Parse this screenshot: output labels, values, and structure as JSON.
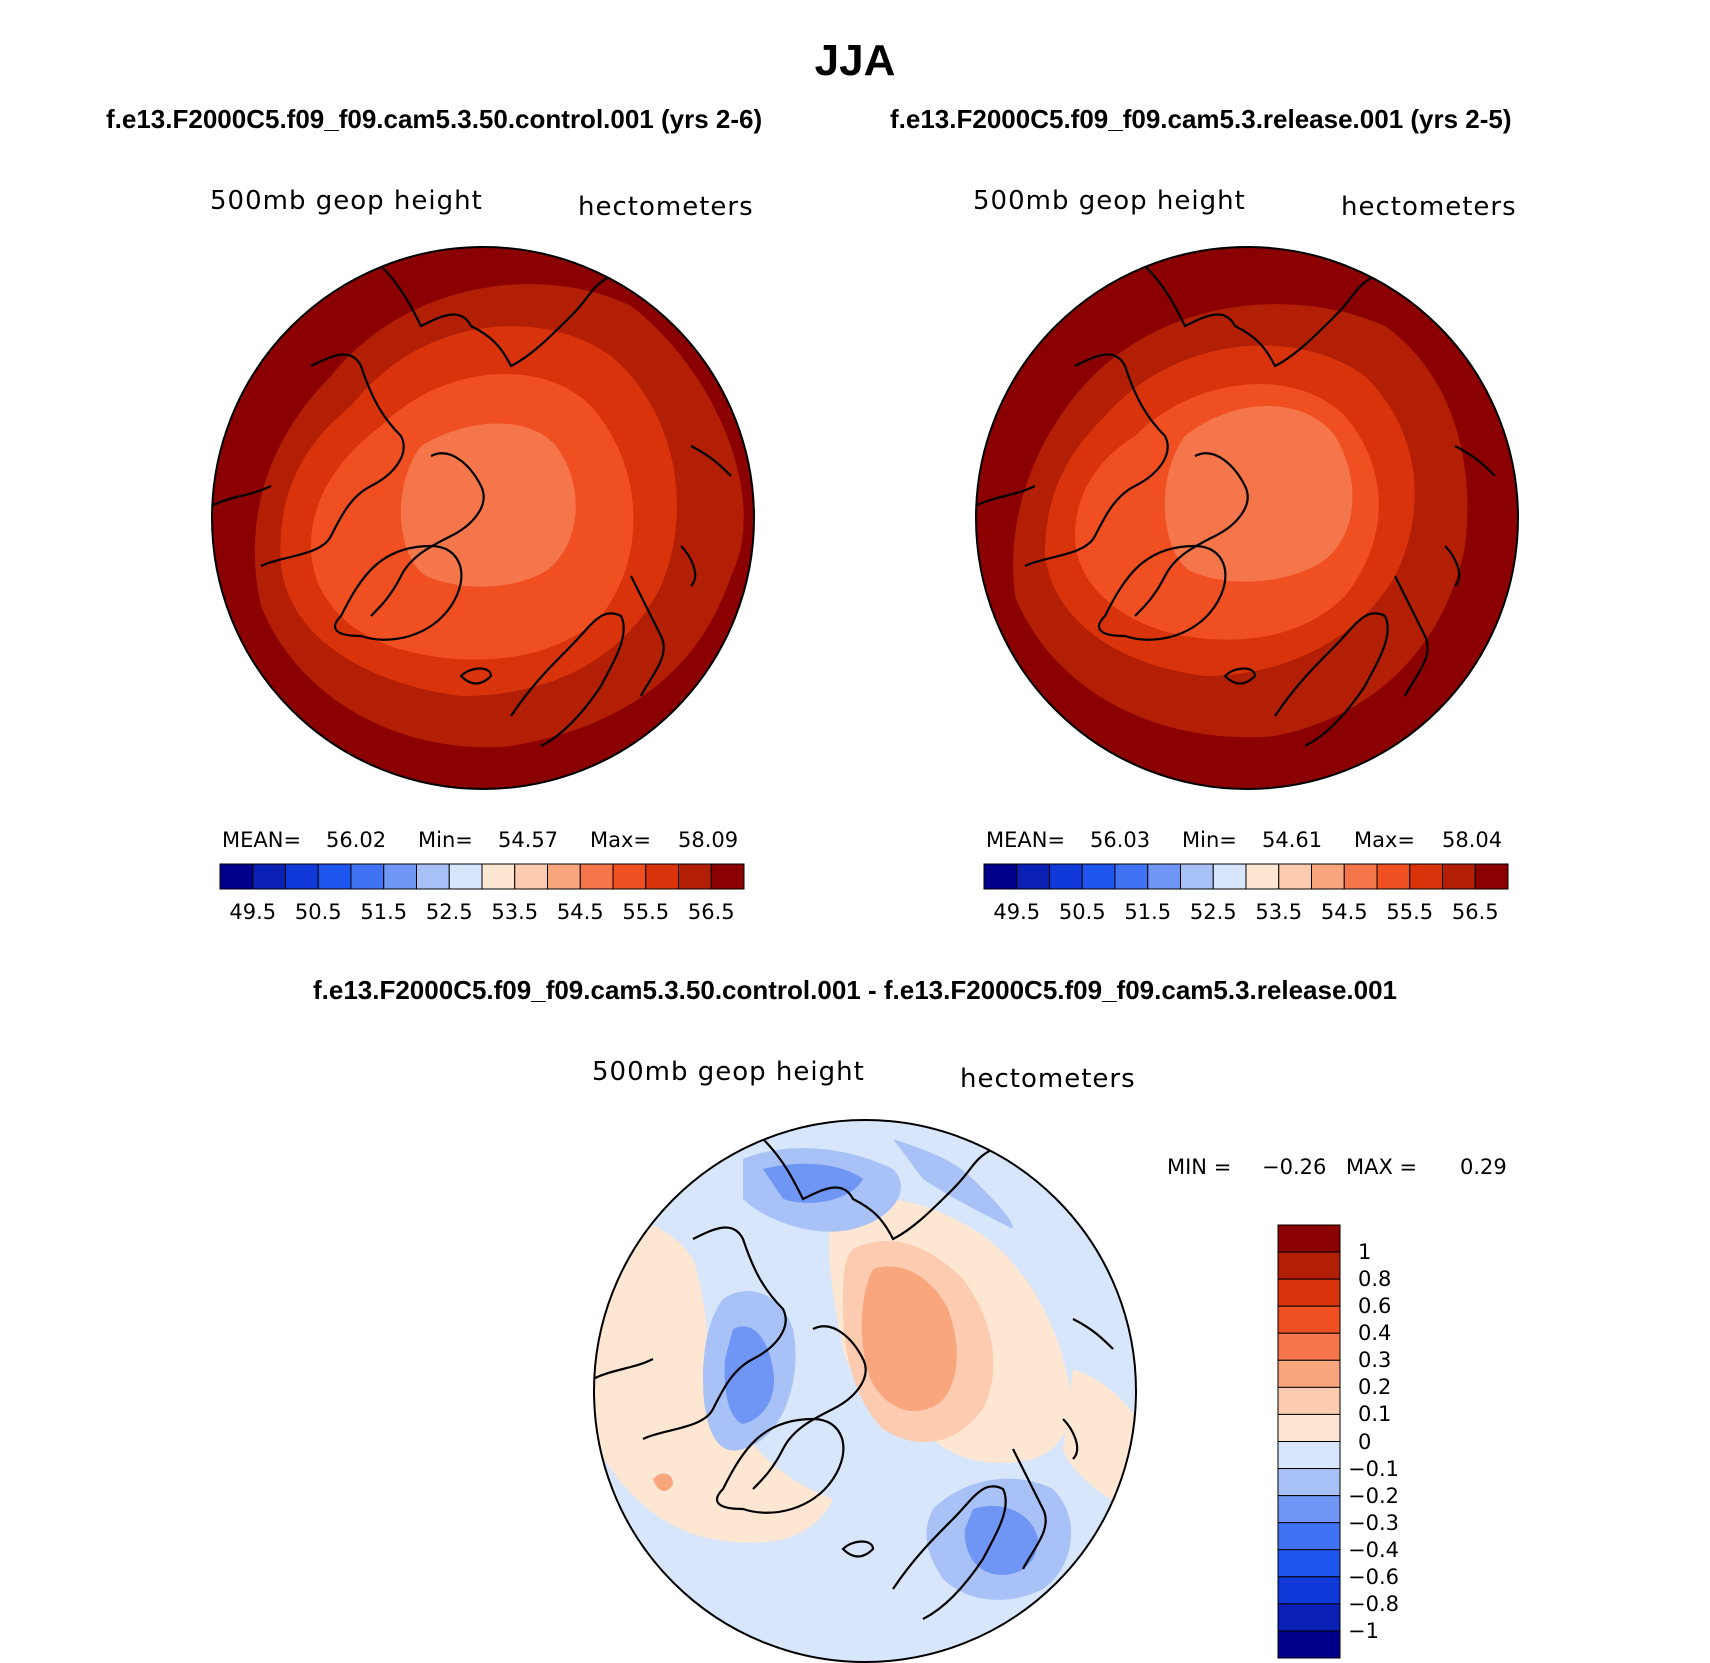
{
  "title": "JJA",
  "left_run_title": "f.e13.F2000C5.f09_f09.cam5.3.50.control.001 (yrs 2-6)",
  "right_run_title": "f.e13.F2000C5.f09_f09.cam5.3.release.001 (yrs 2-5)",
  "diff_title": "f.e13.F2000C5.f09_f09.cam5.3.50.control.001 - f.e13.F2000C5.f09_f09.cam5.3.release.001",
  "panels": {
    "left": {
      "variable": "500mb geop height",
      "units": "hectometers",
      "mean_label": "MEAN=",
      "mean": "56.02",
      "min_label": "Min=",
      "min": "54.57",
      "max_label": "Max=",
      "max": "58.09"
    },
    "right": {
      "variable": "500mb geop height",
      "units": "hectometers",
      "mean_label": "MEAN=",
      "mean": "56.03",
      "min_label": "Min=",
      "min": "54.61",
      "max_label": "Max=",
      "max": "58.04"
    },
    "diff": {
      "variable": "500mb geop height",
      "units": "hectometers",
      "min_label": "MIN =",
      "min": "−0.26",
      "max_label": "MAX =",
      "max": "0.29"
    }
  },
  "colorbar_abs": {
    "colors": [
      "#00008b",
      "#0a1fb4",
      "#1138d8",
      "#1f55ef",
      "#3f73f3",
      "#7096f5",
      "#a8c2f7",
      "#d8e6fb",
      "#fde6d2",
      "#fccbb0",
      "#f9a67f",
      "#f5764a",
      "#f04f22",
      "#d9330b",
      "#b21f05",
      "#8b0000"
    ],
    "labels": [
      "49.5",
      "50.5",
      "51.5",
      "52.5",
      "53.5",
      "54.5",
      "55.5",
      "56.5"
    ]
  },
  "colorbar_diff": {
    "colors": [
      "#8b0000",
      "#b21f05",
      "#d9330b",
      "#f04f22",
      "#f5764a",
      "#f9a67f",
      "#fccbb0",
      "#fde6d2",
      "#d8e6fb",
      "#a8c2f7",
      "#7096f5",
      "#3f73f3",
      "#1f55ef",
      "#1138d8",
      "#0a1fb4",
      "#00008b"
    ],
    "labels": [
      "1",
      "0.8",
      "0.6",
      "0.4",
      "0.3",
      "0.2",
      "0.1",
      "0",
      "−0.1",
      "−0.2",
      "−0.3",
      "−0.4",
      "−0.6",
      "−0.8",
      "−1"
    ]
  }
}
